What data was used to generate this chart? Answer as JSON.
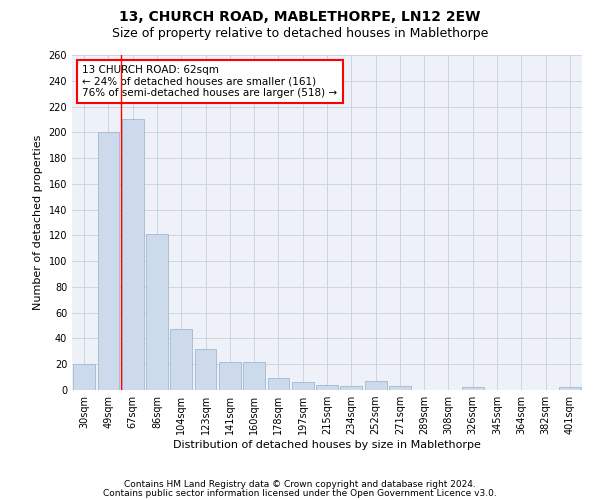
{
  "title1": "13, CHURCH ROAD, MABLETHORPE, LN12 2EW",
  "title2": "Size of property relative to detached houses in Mablethorpe",
  "xlabel": "Distribution of detached houses by size in Mablethorpe",
  "ylabel": "Number of detached properties",
  "categories": [
    "30sqm",
    "49sqm",
    "67sqm",
    "86sqm",
    "104sqm",
    "123sqm",
    "141sqm",
    "160sqm",
    "178sqm",
    "197sqm",
    "215sqm",
    "234sqm",
    "252sqm",
    "271sqm",
    "289sqm",
    "308sqm",
    "326sqm",
    "345sqm",
    "364sqm",
    "382sqm",
    "401sqm"
  ],
  "values": [
    20,
    200,
    210,
    121,
    47,
    32,
    22,
    22,
    9,
    6,
    4,
    3,
    7,
    3,
    0,
    0,
    2,
    0,
    0,
    0,
    2
  ],
  "bar_color": "#cddaeb",
  "bar_edge_color": "#a0b8d0",
  "grid_color": "#c8d0de",
  "background_color": "#eef2f8",
  "redline_x": 1.5,
  "annotation_text": "13 CHURCH ROAD: 62sqm\n← 24% of detached houses are smaller (161)\n76% of semi-detached houses are larger (518) →",
  "annotation_box_color": "white",
  "annotation_box_edge": "red",
  "ylim": [
    0,
    260
  ],
  "yticks": [
    0,
    20,
    40,
    60,
    80,
    100,
    120,
    140,
    160,
    180,
    200,
    220,
    240,
    260
  ],
  "footer1": "Contains HM Land Registry data © Crown copyright and database right 2024.",
  "footer2": "Contains public sector information licensed under the Open Government Licence v3.0.",
  "title1_fontsize": 10,
  "title2_fontsize": 9,
  "annotation_fontsize": 7.5,
  "axis_label_fontsize": 8,
  "tick_fontsize": 7,
  "footer_fontsize": 6.5
}
